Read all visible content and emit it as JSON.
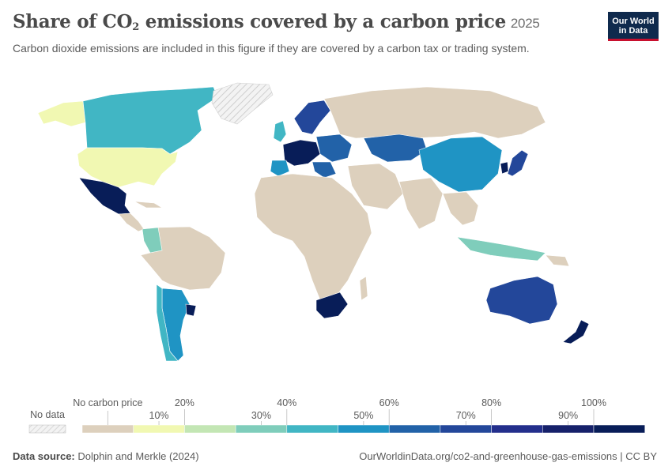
{
  "header": {
    "title_main": "Share of CO",
    "title_sub": "2",
    "title_rest": " emissions covered by a carbon price",
    "year": "2025",
    "subtitle": "Carbon dioxide emissions are included in this figure if they are covered by a carbon tax or trading system."
  },
  "logo": {
    "line1": "Our World",
    "line2": "in Data"
  },
  "legend": {
    "no_data_label": "No data",
    "no_carbon_label": "No carbon price",
    "upper_ticks": [
      "20%",
      "40%",
      "60%",
      "80%",
      "100%"
    ],
    "lower_ticks": [
      "10%",
      "30%",
      "50%",
      "70%",
      "90%"
    ],
    "bins": [
      {
        "label": "No carbon price",
        "color": "#ddd0bd"
      },
      {
        "label": "0-10%",
        "color": "#f1f8b2"
      },
      {
        "label": "10-20%",
        "color": "#c3e6b4"
      },
      {
        "label": "20-30%",
        "color": "#7fcdbb"
      },
      {
        "label": "30-40%",
        "color": "#41b6c4"
      },
      {
        "label": "40-50%",
        "color": "#1f94c4"
      },
      {
        "label": "50-60%",
        "color": "#2262a8"
      },
      {
        "label": "60-70%",
        "color": "#23479a"
      },
      {
        "label": "70-80%",
        "color": "#232f8c"
      },
      {
        "label": "80-90%",
        "color": "#16216a"
      },
      {
        "label": "90-100%",
        "color": "#081d58"
      }
    ]
  },
  "map_regions": [
    {
      "name": "Canada",
      "color": "#41b6c4"
    },
    {
      "name": "United States",
      "color": "#f1f8b2"
    },
    {
      "name": "Alaska",
      "color": "#f1f8b2"
    },
    {
      "name": "Greenland",
      "color": "no-data"
    },
    {
      "name": "Mexico",
      "color": "#081d58"
    },
    {
      "name": "Colombia",
      "color": "#7fcdbb"
    },
    {
      "name": "Argentina",
      "color": "#1f94c4"
    },
    {
      "name": "Uruguay",
      "color": "#081d58"
    },
    {
      "name": "Chile",
      "color": "#41b6c4"
    },
    {
      "name": "South Africa",
      "color": "#081d58"
    },
    {
      "name": "Kazakhstan",
      "color": "#2262a8"
    },
    {
      "name": "China",
      "color": "#1f94c4"
    },
    {
      "name": "Japan",
      "color": "#23479a"
    },
    {
      "name": "South Korea",
      "color": "#081d58"
    },
    {
      "name": "Indonesia",
      "color": "#7fcdbb"
    },
    {
      "name": "Australia",
      "color": "#23479a"
    },
    {
      "name": "New Zealand",
      "color": "#081d58"
    },
    {
      "name": "United Kingdom",
      "color": "#41b6c4"
    },
    {
      "name": "Scandinavia",
      "color": "#23479a"
    },
    {
      "name": "Western Europe",
      "color": "#081d58"
    },
    {
      "name": "Eastern Europe",
      "color": "#2262a8"
    },
    {
      "name": "Spain",
      "color": "#1f94c4"
    },
    {
      "name": "Ukraine",
      "color": "#2262a8"
    }
  ],
  "footer": {
    "source_label": "Data source:",
    "source_text": " Dolphin and Merkle (2024)",
    "url": "OurWorldinData.org/co2-and-greenhouse-gas-emissions | CC BY"
  }
}
